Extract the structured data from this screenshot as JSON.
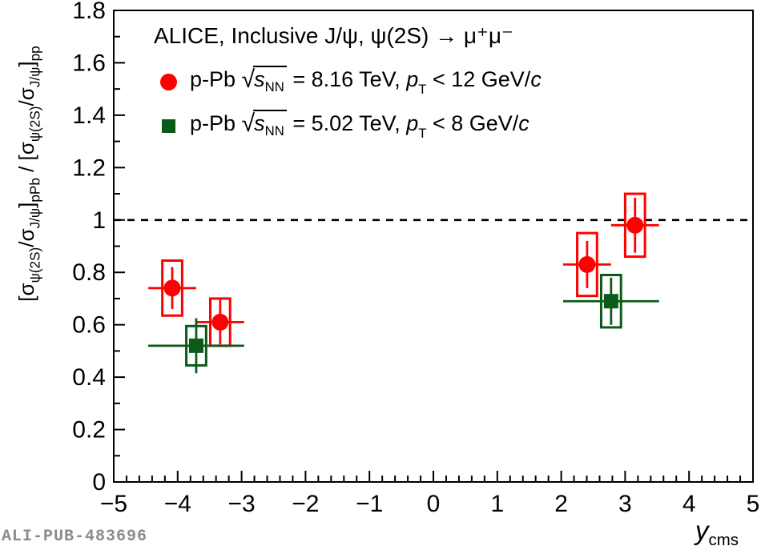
{
  "figure_id": "ALI-PUB-483696",
  "legend": {
    "title": "ALICE, Inclusive J/ψ, ψ(2S) → μ⁺μ⁻",
    "entries": [
      {
        "marker": "circle",
        "color": "#ff0000",
        "parts": {
          "system": "p-Pb ",
          "sqrt": "√",
          "s": "s",
          "nn": "NN",
          "eq": " = 8.16 TeV, ",
          "p": "p",
          "T": "T",
          "cond": " < 12 GeV/",
          "c": "c"
        }
      },
      {
        "marker": "square",
        "color": "#0a5a19",
        "parts": {
          "system": "p-Pb ",
          "sqrt": "√",
          "s": "s",
          "nn": "NN",
          "eq": " = 5.02 TeV, ",
          "p": "p",
          "T": "T",
          "cond": " < 8 GeV/",
          "c": "c"
        }
      }
    ]
  },
  "ylabel_parts": {
    "b1": "[σ",
    "sub1": "ψ(2S)",
    "b2": "/σ",
    "sub2": "J/ψ",
    "b3": "]",
    "sub3": "pPb",
    "b4": " / [σ",
    "sub4": "ψ(2S)",
    "b5": "/σ",
    "sub5": "J/ψ",
    "b6": "]",
    "sub6": "pp"
  },
  "xlabel_parts": {
    "y": "y",
    "sub": "cms"
  },
  "chart_data": {
    "type": "scatter",
    "title": "ALICE, Inclusive J/ψ, ψ(2S) → μ⁺μ⁻",
    "xlabel": "y_cms",
    "ylabel": "[σ_ψ(2S)/σ_J/ψ]_pPb / [σ_ψ(2S)/σ_J/ψ]_pp",
    "xlim": [
      -5,
      5
    ],
    "ylim": [
      0,
      1.8
    ],
    "x_major_ticks": [
      -5,
      -4,
      -3,
      -2,
      -1,
      0,
      1,
      2,
      3,
      4,
      5
    ],
    "x_tick_labels": [
      "−5",
      "−4",
      "−3",
      "−2",
      "−1",
      "0",
      "1",
      "2",
      "3",
      "4",
      "5"
    ],
    "x_minor_step": 0.2,
    "y_major_ticks": [
      0,
      0.2,
      0.4,
      0.6,
      0.8,
      1,
      1.2,
      1.4,
      1.6,
      1.8
    ],
    "y_tick_labels": [
      "0",
      "0.2",
      "0.4",
      "0.6",
      "0.8",
      "1",
      "1.2",
      "1.4",
      "1.6",
      "1.8"
    ],
    "y_minor_step": 0.1,
    "reference_line_y": 1.0,
    "grid": false,
    "legend_position": "top-left",
    "series": [
      {
        "name": "p-Pb √sNN = 8.16 TeV, pT < 12 GeV/c",
        "marker": "circle",
        "color": "#ff0000",
        "syst_box_halfwidth_x": 0.155,
        "points": [
          {
            "x": -4.085,
            "x_low": -4.46,
            "x_high": -3.71,
            "y": 0.74,
            "stat": 0.08,
            "syst": 0.105
          },
          {
            "x": -3.335,
            "x_low": -3.71,
            "x_high": -2.96,
            "y": 0.61,
            "stat": 0.085,
            "syst": 0.09
          },
          {
            "x": 2.405,
            "x_low": 2.03,
            "x_high": 2.78,
            "y": 0.83,
            "stat": 0.09,
            "syst": 0.12
          },
          {
            "x": 3.155,
            "x_low": 2.78,
            "x_high": 3.53,
            "y": 0.98,
            "stat": 0.105,
            "syst": 0.12
          }
        ]
      },
      {
        "name": "p-Pb √sNN = 5.02 TeV, pT < 8 GeV/c",
        "marker": "square",
        "color": "#0a5a19",
        "syst_box_halfwidth_x": 0.155,
        "points": [
          {
            "x": -3.71,
            "x_low": -4.46,
            "x_high": -2.96,
            "y": 0.52,
            "stat": 0.105,
            "syst": 0.075
          },
          {
            "x": 2.78,
            "x_low": 2.03,
            "x_high": 3.53,
            "y": 0.69,
            "stat": 0.09,
            "syst": 0.1
          }
        ]
      }
    ]
  },
  "footer": {
    "label": "ALI-PUB-483696"
  }
}
